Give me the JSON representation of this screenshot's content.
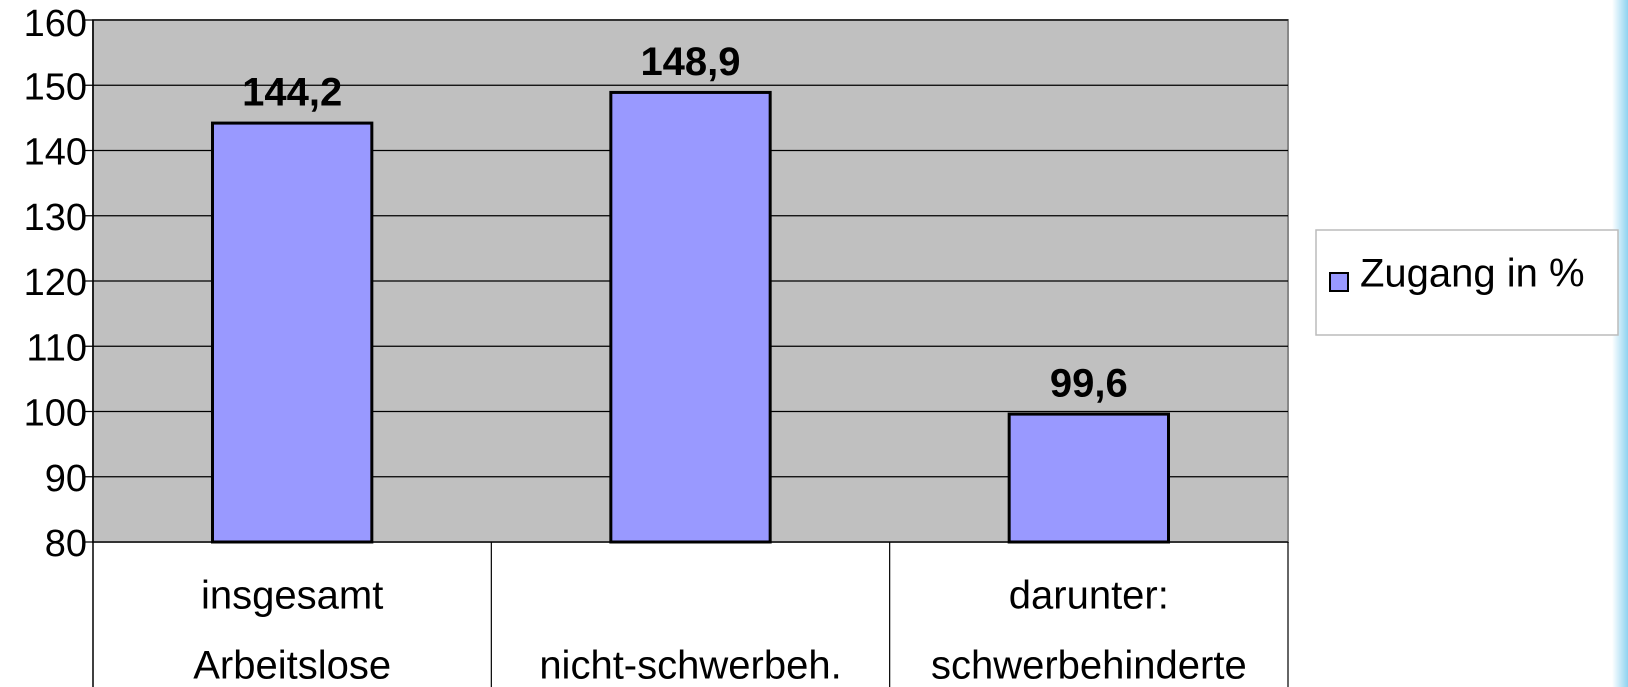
{
  "chart_data": {
    "type": "bar",
    "categories": [
      [
        "insgesamt",
        "Arbeitslose"
      ],
      [
        "nicht-schwerbeh."
      ],
      [
        "darunter:",
        "schwerbehinderte"
      ]
    ],
    "series": [
      {
        "name": "Zugang in %",
        "color": "#9999ff",
        "values": [
          144.2,
          148.9,
          99.6
        ],
        "value_labels": [
          "144,2",
          "148,9",
          "99,6"
        ]
      }
    ],
    "ylim": [
      80,
      160
    ],
    "yticks": [
      80,
      90,
      100,
      110,
      120,
      130,
      140,
      150,
      160
    ],
    "grid": true,
    "legend": "right"
  }
}
